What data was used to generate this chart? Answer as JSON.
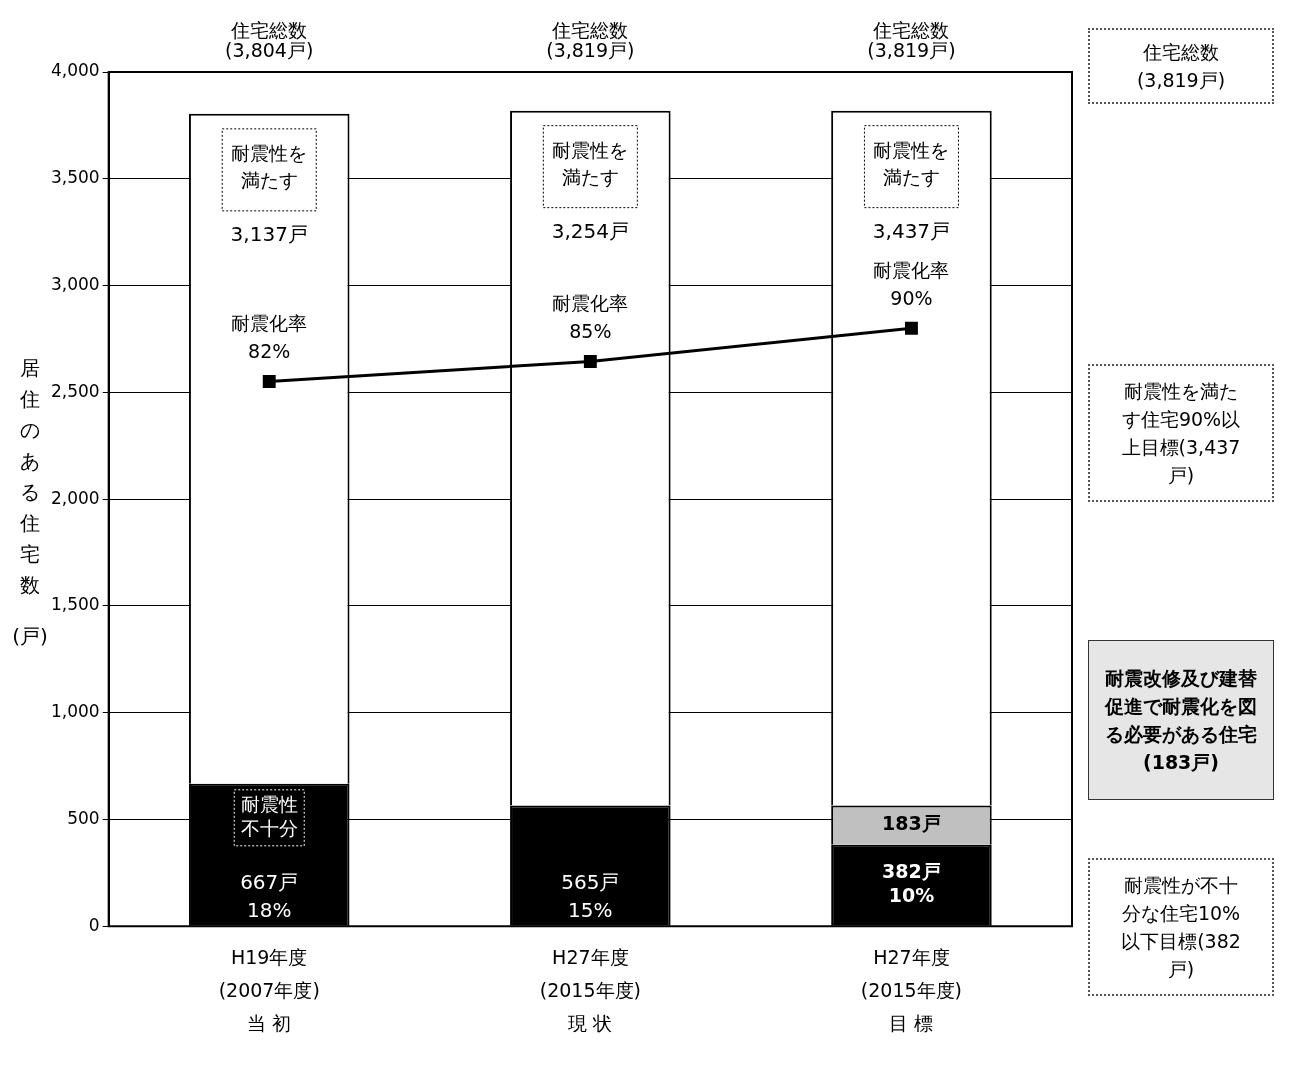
{
  "chart_data": {
    "type": "bar",
    "stacked": true,
    "ylabel": "居住のある住宅数\n(戸)",
    "categories": [
      "H19年度\n(2007年度)\n当 初",
      "H27年度\n(2015年度)\n現 状",
      "H27年度\n(2015年度)\n目 標"
    ],
    "series": [
      {
        "name": "耐震性不十分",
        "color": "#000000",
        "values": [
          667,
          565,
          382
        ],
        "value_labels": [
          "667戸\n18%",
          "565戸\n15%",
          "382戸\n10%"
        ]
      },
      {
        "color": "#c0c0c0",
        "values": [
          null,
          null,
          183
        ],
        "value_labels": [
          null,
          null,
          "183戸"
        ]
      },
      {
        "name": "耐震性を満たす",
        "color": "#ffffff",
        "values": [
          3137,
          3254,
          3254
        ],
        "value_labels": [
          "3,137戸",
          "3,254戸",
          null
        ]
      },
      {
        "name": "耐震化率",
        "type": "line",
        "axis": "y2",
        "color": "#000000",
        "values": [
          82,
          85,
          90
        ],
        "value_labels": [
          "82%",
          "85%",
          "90%"
        ]
      }
    ],
    "totals": [
      "住宅総数\n(3,804戸)",
      "住宅総数\n(3,819戸)",
      "住宅総数\n(3,819戸)"
    ],
    "ylim": [
      0,
      4000
    ],
    "yticks": [
      {
        "value": 0,
        "label": "0"
      },
      {
        "value": 500,
        "label": "500"
      },
      {
        "value": 1000,
        "label": "1,000"
      },
      {
        "value": 1500,
        "label": "1,500"
      },
      {
        "value": 2000,
        "label": "2,000"
      },
      {
        "value": 2500,
        "label": "2,500"
      },
      {
        "value": 3000,
        "label": "3,000"
      },
      {
        "value": 3500,
        "label": "3,500"
      },
      {
        "value": 4000,
        "label": "4,000"
      }
    ],
    "grid": "y",
    "legend": false,
    "marker": "square",
    "line_style": "solid",
    "annotations": [
      "3,437戸",
      "住宅総数(3,819戸)",
      "耐震性を満たす住宅90%以上目標(3,437戸)",
      "耐震改修及び建替促進で耐震化を図る必要がある住宅(183戸)",
      "耐震性が不十分な住宅10%以下目標(382戸)"
    ]
  }
}
